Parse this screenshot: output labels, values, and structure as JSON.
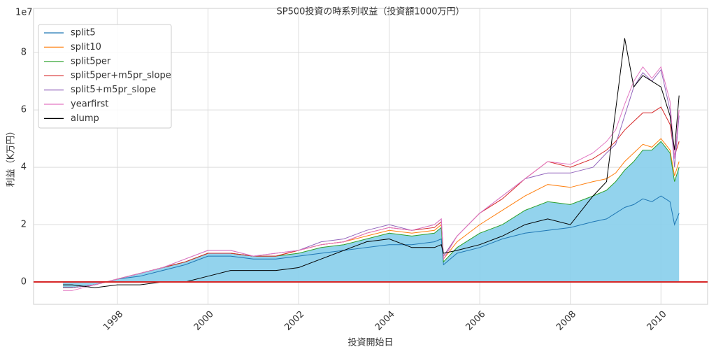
{
  "chart_data": {
    "type": "line",
    "title": "SP500投資の時系列収益（投資額1000万円）",
    "xlabel": "投資開始日",
    "ylabel": "利益（K万円）",
    "y_offset_label": "1e7",
    "x": [
      1996.8,
      1997.0,
      1997.5,
      1998.0,
      1998.5,
      1999.0,
      1999.5,
      2000.0,
      2000.5,
      2001.0,
      2001.5,
      2002.0,
      2002.5,
      2003.0,
      2003.5,
      2004.0,
      2004.5,
      2005.0,
      2005.15,
      2005.2,
      2005.5,
      2006.0,
      2006.5,
      2007.0,
      2007.5,
      2008.0,
      2008.5,
      2008.8,
      2009.0,
      2009.2,
      2009.4,
      2009.6,
      2009.8,
      2010.0,
      2010.2,
      2010.3,
      2010.4
    ],
    "series": [
      {
        "name": "split5",
        "color": "#1f77b4",
        "values": [
          -0.2,
          -0.2,
          -0.1,
          0.1,
          0.2,
          0.4,
          0.6,
          0.9,
          0.9,
          0.8,
          0.8,
          0.9,
          1.0,
          1.1,
          1.2,
          1.3,
          1.3,
          1.4,
          1.5,
          0.6,
          1.0,
          1.2,
          1.5,
          1.7,
          1.8,
          1.9,
          2.1,
          2.2,
          2.4,
          2.6,
          2.7,
          2.9,
          2.8,
          3.0,
          2.8,
          2.0,
          2.4
        ]
      },
      {
        "name": "split10",
        "color": "#ff7f0e",
        "values": [
          -0.2,
          -0.2,
          -0.1,
          0.1,
          0.3,
          0.5,
          0.7,
          1.0,
          1.0,
          0.9,
          0.9,
          1.1,
          1.3,
          1.4,
          1.6,
          1.8,
          1.7,
          1.8,
          2.0,
          0.8,
          1.4,
          2.0,
          2.5,
          3.0,
          3.4,
          3.3,
          3.5,
          3.6,
          3.8,
          4.2,
          4.5,
          4.8,
          4.7,
          5.0,
          4.6,
          3.7,
          4.2
        ]
      },
      {
        "name": "split5per",
        "color": "#2ca02c",
        "values": [
          -0.2,
          -0.2,
          -0.1,
          0.1,
          0.3,
          0.5,
          0.7,
          1.0,
          1.0,
          0.9,
          0.9,
          1.0,
          1.2,
          1.3,
          1.5,
          1.7,
          1.6,
          1.7,
          1.9,
          0.7,
          1.2,
          1.7,
          2.0,
          2.5,
          2.8,
          2.7,
          3.0,
          3.2,
          3.5,
          3.9,
          4.2,
          4.6,
          4.6,
          4.9,
          4.5,
          3.5,
          4.0
        ]
      },
      {
        "name": "split5per+m5pr_slope",
        "color": "#d62728",
        "values": [
          -0.2,
          -0.2,
          -0.1,
          0.1,
          0.3,
          0.5,
          0.7,
          1.0,
          1.0,
          0.9,
          0.9,
          1.1,
          1.3,
          1.4,
          1.7,
          1.9,
          1.8,
          1.9,
          2.1,
          0.9,
          1.6,
          2.4,
          2.9,
          3.6,
          4.2,
          4.0,
          4.3,
          4.6,
          4.9,
          5.3,
          5.6,
          5.9,
          5.9,
          6.1,
          5.5,
          4.4,
          4.9
        ]
      },
      {
        "name": "split5+m5pr_slope",
        "color": "#9467bd",
        "values": [
          -0.2,
          -0.2,
          -0.1,
          0.1,
          0.3,
          0.5,
          0.8,
          1.1,
          1.1,
          0.9,
          1.0,
          1.1,
          1.4,
          1.5,
          1.8,
          2.0,
          1.8,
          2.0,
          2.2,
          0.9,
          1.6,
          2.4,
          3.0,
          3.6,
          3.8,
          3.8,
          4.0,
          4.5,
          4.8,
          5.8,
          6.8,
          7.3,
          7.0,
          7.4,
          6.0,
          4.0,
          5.8
        ]
      },
      {
        "name": "yearfirst",
        "color": "#e377c2",
        "values": [
          -0.3,
          -0.3,
          -0.1,
          0.1,
          0.3,
          0.5,
          0.8,
          1.1,
          1.1,
          0.9,
          1.0,
          1.1,
          1.3,
          1.4,
          1.7,
          1.9,
          1.8,
          2.0,
          2.2,
          0.8,
          1.6,
          2.4,
          3.0,
          3.6,
          4.2,
          4.1,
          4.5,
          4.9,
          5.3,
          6.2,
          7.0,
          7.5,
          7.1,
          7.5,
          6.3,
          4.3,
          6.0
        ]
      },
      {
        "name": "alump",
        "color": "#000000",
        "values": [
          -0.1,
          -0.1,
          -0.2,
          -0.1,
          -0.1,
          0.0,
          0.0,
          0.2,
          0.4,
          0.4,
          0.4,
          0.5,
          0.8,
          1.1,
          1.4,
          1.5,
          1.2,
          1.2,
          1.3,
          1.0,
          1.1,
          1.3,
          1.6,
          2.0,
          2.2,
          2.0,
          3.0,
          3.5,
          6.0,
          8.5,
          6.8,
          7.2,
          7.0,
          6.8,
          5.8,
          4.6,
          6.5
        ]
      }
    ],
    "fill_series": "split5per",
    "fill_color": "#87ceeb",
    "hline": 0,
    "hline_color": "#d62728",
    "xlim": [
      1996.15,
      2011.03
    ],
    "xticks": [
      1998,
      2000,
      2002,
      2004,
      2006,
      2008,
      2010
    ],
    "ylim": [
      -0.78,
      9.54
    ],
    "yticks": [
      0,
      2,
      4,
      6,
      8
    ],
    "grid": true,
    "legend": "upper left"
  }
}
